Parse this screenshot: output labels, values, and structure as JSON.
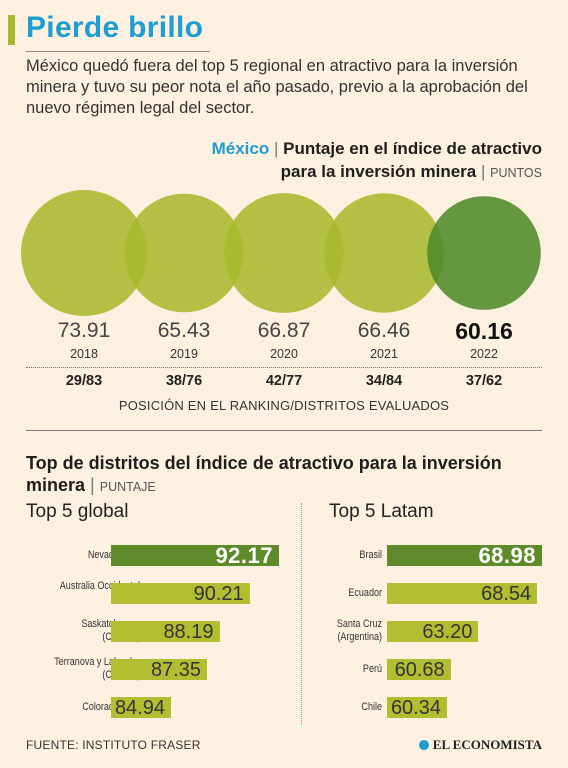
{
  "header": {
    "title": "Pierde brillo",
    "subtitle": "México quedó fuera del top 5 regional en atractivo para la inversión minera y tuvo su peor nota el año pasado, previo a la aprobación del nuevo régimen legal del sector."
  },
  "colors": {
    "accent": "#1f9dd0",
    "bar": "#b2be32",
    "highlight": "#5e8a2a",
    "background": "#fcf0e1"
  },
  "chart_data": [
    {
      "type": "bubble",
      "title_country": "México",
      "title_sep": "|",
      "title_line1": "Puntaje en el índice de atractivo",
      "title_line2": "para la inversión minera",
      "unit": "PUNTOS",
      "years": [
        "2018",
        "2019",
        "2020",
        "2021",
        "2022"
      ],
      "values": [
        73.91,
        65.43,
        66.87,
        66.46,
        60.16
      ],
      "value_labels": [
        "73.91",
        "65.43",
        "66.87",
        "66.46",
        "60.16"
      ],
      "highlight_index": 4,
      "rankings": [
        "29/83",
        "38/76",
        "42/77",
        "34/84",
        "37/62"
      ],
      "rankings_caption": "POSICIÓN EN EL RANKING/DISTRITOS EVALUADOS"
    },
    {
      "type": "bar",
      "orientation": "horizontal",
      "section_title": "Top de distritos del índice de atractivo para la inversión minera",
      "section_sep": "|",
      "unit": "PUNTAJE",
      "title": "Top 5 global",
      "categories": [
        "Nevada (EU)",
        "Australia Occidental",
        "Saskatchewan (Canadá)",
        "Terranova y Labrador (Canadá)",
        "Colorado (EU)"
      ],
      "values": [
        92.17,
        90.21,
        88.19,
        87.35,
        84.94
      ],
      "value_labels": [
        "92.17",
        "90.21",
        "88.19",
        "87.35",
        "84.94"
      ],
      "highlight_index": 0
    },
    {
      "type": "bar",
      "orientation": "horizontal",
      "title": "Top 5 Latam",
      "categories": [
        "Brasil",
        "Ecuador",
        "Santa Cruz (Argentina)",
        "Perú",
        "Chile"
      ],
      "values": [
        68.98,
        68.54,
        63.2,
        60.68,
        60.34
      ],
      "value_labels": [
        "68.98",
        "68.54",
        "63.20",
        "60.68",
        "60.34"
      ],
      "highlight_index": 0
    }
  ],
  "footer": {
    "source": "FUENTE: INSTITUTO FRASER",
    "brand": "EL ECONOMISTA"
  }
}
